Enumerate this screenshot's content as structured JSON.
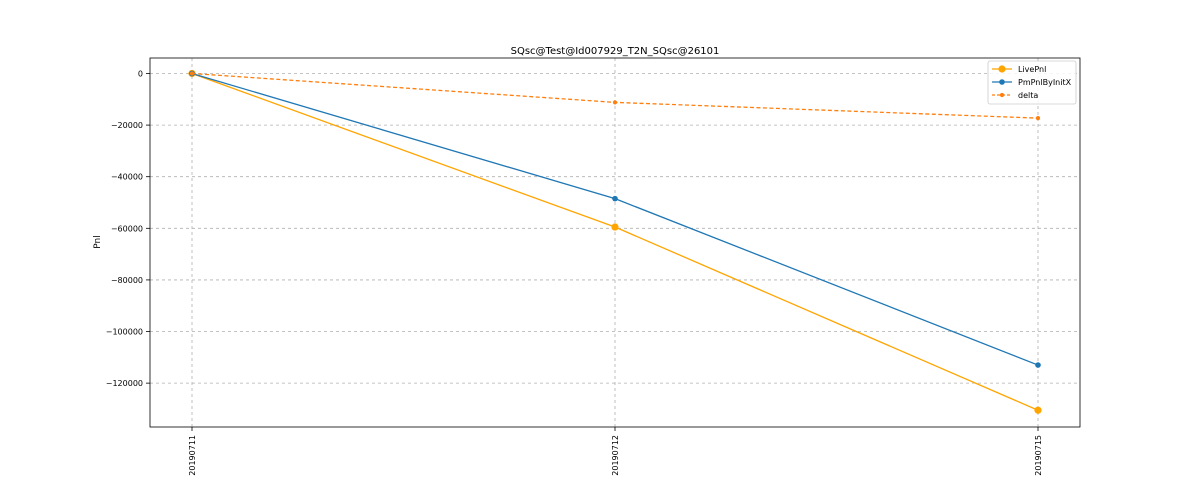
{
  "chart_data": {
    "type": "line",
    "title": "SQsc@Test@Id007929_T2N_SQsc@26101",
    "xlabel": "",
    "ylabel": "Pnl",
    "categories": [
      "20190711",
      "20190712",
      "20190715"
    ],
    "yticks": [
      0,
      -20000,
      -40000,
      -60000,
      -80000,
      -100000,
      -120000
    ],
    "ytick_labels": [
      "0",
      "−20000",
      "−40000",
      "−60000",
      "−80000",
      "−100000",
      "−120000"
    ],
    "ylim": [
      -137000,
      6000
    ],
    "grid": true,
    "legend_position": "top-right",
    "series": [
      {
        "name": "LivePnl",
        "values": [
          0,
          -59500,
          -130500
        ],
        "color": "#ffa500",
        "style": "solid",
        "marker": "circle-large"
      },
      {
        "name": "PmPnlByInitX",
        "values": [
          0,
          -48500,
          -113000
        ],
        "color": "#1f77b4",
        "style": "solid",
        "marker": "circle"
      },
      {
        "name": "delta",
        "values": [
          0,
          -11200,
          -17300
        ],
        "color": "#ff7f0e",
        "style": "dashed",
        "marker": "circle-small"
      }
    ]
  }
}
